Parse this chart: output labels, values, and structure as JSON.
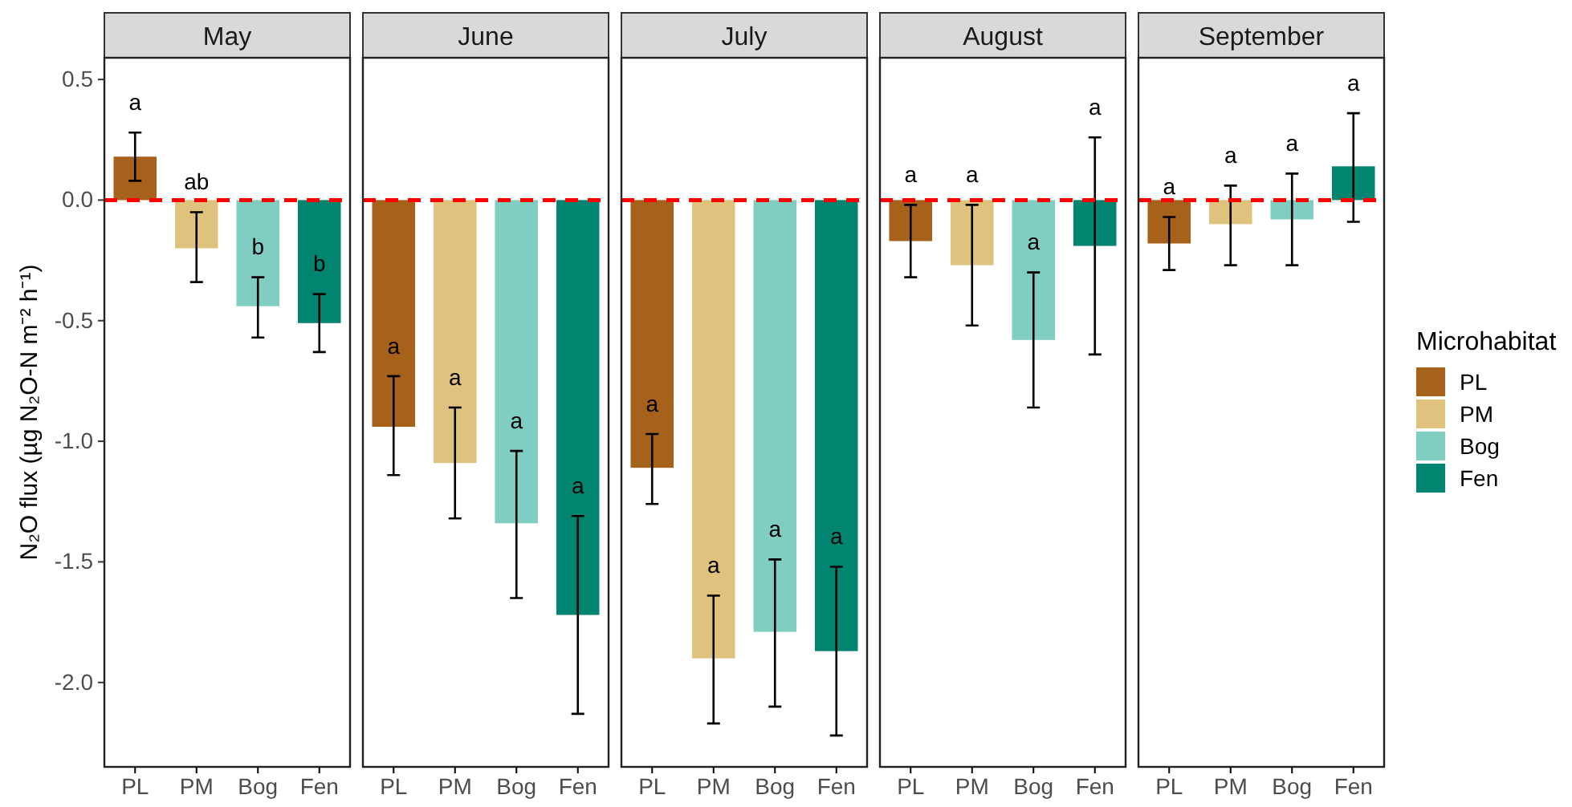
{
  "chart_data": [
    {
      "type": "bar",
      "title": "May",
      "ylabel": "N₂O flux (µg N₂O-N m⁻² h⁻¹)",
      "categories": [
        "PL",
        "PM",
        "Bog",
        "Fen"
      ],
      "series": [
        {
          "color": "#a6611a",
          "values": [
            0.18,
            null,
            null,
            null
          ],
          "errors": [
            [
              0.08,
              0.28
            ],
            null,
            null,
            null
          ]
        },
        {
          "color": "#dfc27d",
          "values": [
            null,
            -0.2,
            null,
            null
          ],
          "errors": [
            null,
            [
              -0.34,
              -0.05
            ],
            null,
            null
          ]
        },
        {
          "color": "#80cdc1",
          "values": [
            null,
            null,
            -0.44,
            null
          ],
          "errors": [
            null,
            null,
            [
              -0.57,
              -0.32
            ],
            null
          ]
        },
        {
          "color": "#018571",
          "values": [
            null,
            null,
            null,
            -0.51
          ],
          "errors": [
            null,
            null,
            null,
            [
              -0.63,
              -0.39
            ]
          ]
        }
      ],
      "ylim": [
        -2.35,
        0.59
      ],
      "yticks": [
        0.5,
        {
          "value": 0,
          "label": "0.0"
        },
        -0.5,
        {
          "value": -1,
          "label": "-1.0"
        },
        -1.5,
        {
          "value": -2,
          "label": "-2.0"
        }
      ],
      "ref_lines": [
        {
          "axis": "y",
          "value": 0,
          "color": "#ff0000",
          "line_style": "dashed"
        }
      ],
      "annotations": [
        "a",
        "ab",
        "b",
        "b"
      ]
    },
    {
      "type": "bar",
      "title": "June",
      "categories": [
        "PL",
        "PM",
        "Bog",
        "Fen"
      ],
      "series": [
        {
          "color": "#a6611a",
          "values": [
            -0.94,
            null,
            null,
            null
          ],
          "errors": [
            [
              -1.14,
              -0.73
            ],
            null,
            null,
            null
          ]
        },
        {
          "color": "#dfc27d",
          "values": [
            null,
            -1.09,
            null,
            null
          ],
          "errors": [
            null,
            [
              -1.32,
              -0.86
            ],
            null,
            null
          ]
        },
        {
          "color": "#80cdc1",
          "values": [
            null,
            null,
            -1.34,
            null
          ],
          "errors": [
            null,
            null,
            [
              -1.65,
              -1.04
            ],
            null
          ]
        },
        {
          "color": "#018571",
          "values": [
            null,
            null,
            null,
            -1.72
          ],
          "errors": [
            null,
            null,
            null,
            [
              -2.13,
              -1.31
            ]
          ]
        }
      ],
      "ylim": [
        -2.35,
        0.59
      ],
      "tick_labels": "x",
      "ref_lines": [
        {
          "axis": "y",
          "value": 0,
          "color": "#ff0000",
          "line_style": "dashed"
        }
      ],
      "annotations": [
        "a",
        "a",
        "a",
        "a"
      ]
    },
    {
      "type": "bar",
      "title": "July",
      "categories": [
        "PL",
        "PM",
        "Bog",
        "Fen"
      ],
      "series": [
        {
          "color": "#a6611a",
          "values": [
            -1.11,
            null,
            null,
            null
          ],
          "errors": [
            [
              -1.26,
              -0.97
            ],
            null,
            null,
            null
          ]
        },
        {
          "color": "#dfc27d",
          "values": [
            null,
            -1.9,
            null,
            null
          ],
          "errors": [
            null,
            [
              -2.17,
              -1.64
            ],
            null,
            null
          ]
        },
        {
          "color": "#80cdc1",
          "values": [
            null,
            null,
            -1.79,
            null
          ],
          "errors": [
            null,
            null,
            [
              -2.1,
              -1.49
            ],
            null
          ]
        },
        {
          "color": "#018571",
          "values": [
            null,
            null,
            null,
            -1.87
          ],
          "errors": [
            null,
            null,
            null,
            [
              -2.22,
              -1.52
            ]
          ]
        }
      ],
      "ylim": [
        -2.35,
        0.59
      ],
      "tick_labels": "x",
      "ref_lines": [
        {
          "axis": "y",
          "value": 0,
          "color": "#ff0000",
          "line_style": "dashed"
        }
      ],
      "annotations": [
        "a",
        "a",
        "a",
        "a"
      ]
    },
    {
      "type": "bar",
      "title": "August",
      "categories": [
        "PL",
        "PM",
        "Bog",
        "Fen"
      ],
      "series": [
        {
          "color": "#a6611a",
          "values": [
            -0.17,
            null,
            null,
            null
          ],
          "errors": [
            [
              -0.32,
              -0.02
            ],
            null,
            null,
            null
          ]
        },
        {
          "color": "#dfc27d",
          "values": [
            null,
            -0.27,
            null,
            null
          ],
          "errors": [
            null,
            [
              -0.52,
              -0.02
            ],
            null,
            null
          ]
        },
        {
          "color": "#80cdc1",
          "values": [
            null,
            null,
            -0.58,
            null
          ],
          "errors": [
            null,
            null,
            [
              -0.86,
              -0.3
            ],
            null
          ]
        },
        {
          "color": "#018571",
          "values": [
            null,
            null,
            null,
            -0.19
          ],
          "errors": [
            null,
            null,
            null,
            [
              -0.64,
              0.26
            ]
          ]
        }
      ],
      "ylim": [
        -2.35,
        0.59
      ],
      "tick_labels": "x",
      "ref_lines": [
        {
          "axis": "y",
          "value": 0,
          "color": "#ff0000",
          "line_style": "dashed"
        }
      ],
      "annotations": [
        "a",
        "a",
        "a",
        "a"
      ]
    },
    {
      "type": "bar",
      "title": "September",
      "categories": [
        "PL",
        "PM",
        "Bog",
        "Fen"
      ],
      "series": [
        {
          "name": "PL",
          "color": "#a6611a",
          "values": [
            -0.18,
            null,
            null,
            null
          ],
          "errors": [
            [
              -0.29,
              -0.07
            ],
            null,
            null,
            null
          ]
        },
        {
          "name": "PM",
          "color": "#dfc27d",
          "values": [
            null,
            -0.1,
            null,
            null
          ],
          "errors": [
            null,
            [
              -0.27,
              0.06
            ],
            null,
            null
          ]
        },
        {
          "name": "Bog",
          "color": "#80cdc1",
          "values": [
            null,
            null,
            -0.08,
            null
          ],
          "errors": [
            null,
            null,
            [
              -0.27,
              0.11
            ],
            null
          ]
        },
        {
          "name": "Fen",
          "color": "#018571",
          "values": [
            null,
            null,
            null,
            0.14
          ],
          "errors": [
            null,
            null,
            null,
            [
              -0.09,
              0.36
            ]
          ]
        }
      ],
      "ylim": [
        -2.35,
        0.59
      ],
      "tick_labels": "x",
      "ref_lines": [
        {
          "axis": "y",
          "value": 0,
          "color": "#ff0000",
          "line_style": "dashed"
        }
      ],
      "annotations": [
        "a",
        "a",
        "a",
        "a"
      ],
      "legend": "right",
      "legend_title": "Microhabitat"
    }
  ]
}
